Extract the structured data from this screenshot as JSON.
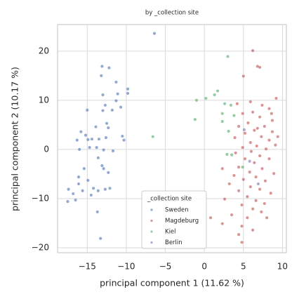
{
  "chart_data": {
    "type": "scatter",
    "title": "by _collection site",
    "x_label": "principal component 1 (11.62 %)",
    "y_label": "principal component 2 (10.17 %)",
    "xlim": [
      -18.8,
      10.5
    ],
    "ylim": [
      -21,
      25.4
    ],
    "xticks": [
      {
        "value": -15,
        "label": "−15"
      },
      {
        "value": -10,
        "label": "−10"
      },
      {
        "value": -5,
        "label": "−5"
      },
      0,
      5,
      10
    ],
    "yticks": [
      {
        "value": -20,
        "label": "−20"
      },
      {
        "value": -10,
        "label": "−10"
      },
      0,
      10,
      20
    ],
    "grid": true,
    "legend_title": "_collection site",
    "legend_loc": "lower center",
    "series": [
      {
        "name": "Sweden",
        "color": "#4c72b0",
        "x": [
          -6.4,
          -13.1,
          -12.2,
          -11.3,
          -13.2,
          -9.8,
          -9.8,
          -11.1,
          -13,
          -11.3,
          -12.7,
          -15,
          -10.7,
          -11.8,
          -13,
          -12.5,
          -12.3,
          -13.9,
          -15.8,
          -15.2,
          -16.3,
          -14.9,
          -14.4,
          -13.5,
          -12.6,
          -10.5,
          -10.3,
          -13.8,
          -14.7,
          -16,
          -12.9,
          -11.7,
          -13.6,
          -12.9,
          -13.1,
          -12.3,
          -15.4,
          -16.1,
          -14.9,
          -16.1,
          -17.4,
          -16.8,
          -15.6,
          -14.2,
          -13.6,
          -12.7,
          -12.1,
          -17.5,
          -16.5,
          -14.5,
          -13.7,
          -13.3
        ],
        "values": [
          23.6,
          16.9,
          16.6,
          13.7,
          15,
          12.3,
          11.4,
          11.3,
          11.1,
          9.9,
          9,
          8,
          8.6,
          8,
          7.9,
          5.3,
          4.4,
          4.6,
          3.6,
          2.9,
          1.9,
          2,
          2.1,
          2.1,
          2.4,
          2.7,
          1.9,
          0.4,
          0.4,
          0,
          -0.1,
          -0.3,
          -1.7,
          -3.9,
          -3.3,
          -4.7,
          -3.9,
          -5.6,
          -6.3,
          -7,
          -8.1,
          -9,
          -8.4,
          -7.9,
          -8.4,
          -8.1,
          -7.9,
          -10.6,
          -10.3,
          -9.3,
          -12.7,
          -18.1
        ]
      },
      {
        "name": "Magdeburg",
        "color": "#c44e52",
        "x": [
          6.2,
          6.8,
          7.1,
          5,
          9.2,
          5.9,
          4.2,
          7.4,
          8.3,
          6.2,
          4.9,
          7.1,
          8.7,
          5.6,
          7.7,
          4.4,
          6.4,
          8.7,
          5.2,
          7.3,
          8.3,
          5.9,
          6.7,
          4.9,
          7.9,
          9.1,
          6,
          4,
          7.1,
          5.2,
          8.3,
          6.4,
          2.3,
          4.4,
          7.4,
          5.8,
          8.9,
          3.8,
          6.6,
          5,
          7.8,
          3.2,
          5.9,
          7.1,
          4.4,
          8.5,
          5.5,
          2.6,
          6.6,
          7.7,
          4.8,
          6.2,
          7.3,
          3.5,
          5.5,
          8,
          2.3,
          4.8,
          6.2,
          4.4,
          4.8,
          0.8,
          3.9,
          6.8,
          8.6,
          9.4
        ],
        "values": [
          20.1,
          16.9,
          16.7,
          14.9,
          10.4,
          9.7,
          9.3,
          9,
          8.3,
          7.6,
          7.3,
          6.6,
          5.9,
          5.4,
          4.7,
          4.7,
          3.9,
          3.6,
          3.3,
          2.6,
          1.9,
          1.4,
          0.7,
          0.4,
          0.1,
          0.9,
          -0.4,
          -0.7,
          -1.3,
          -1.9,
          -1.9,
          -2.7,
          -3.9,
          -3.6,
          -3.9,
          -4.6,
          -4.9,
          -5.3,
          -5.6,
          -6.1,
          -6.4,
          -7,
          -7.6,
          -8.1,
          -8.4,
          -8.9,
          -9.6,
          -10.1,
          -10.4,
          -11,
          -11.3,
          -12.1,
          -12.7,
          -13.3,
          -13.9,
          -13.9,
          -15.1,
          -15.6,
          -16.4,
          -17.3,
          -18.9,
          -13.9,
          2.4,
          4.3,
          7.3,
          2.6
        ]
      },
      {
        "name": "Kiel",
        "color": "#55a868",
        "x": [
          3,
          1.7,
          1.3,
          0.2,
          -1,
          2.6,
          3.4,
          3.8,
          2.3,
          2.3,
          -1.2,
          3.1,
          2.9,
          3.5,
          4.9,
          -6.6
        ],
        "values": [
          18.9,
          11.9,
          11.1,
          10.4,
          10,
          9.3,
          9,
          6.9,
          7.3,
          5.7,
          6.1,
          3.7,
          -1,
          -1.1,
          -3.6,
          2.6
        ]
      },
      {
        "name": "Berlin",
        "color": "#8172b3",
        "x": [
          5.1,
          5.8,
          6.9
        ],
        "values": [
          4,
          -2.4,
          -7
        ]
      }
    ]
  }
}
